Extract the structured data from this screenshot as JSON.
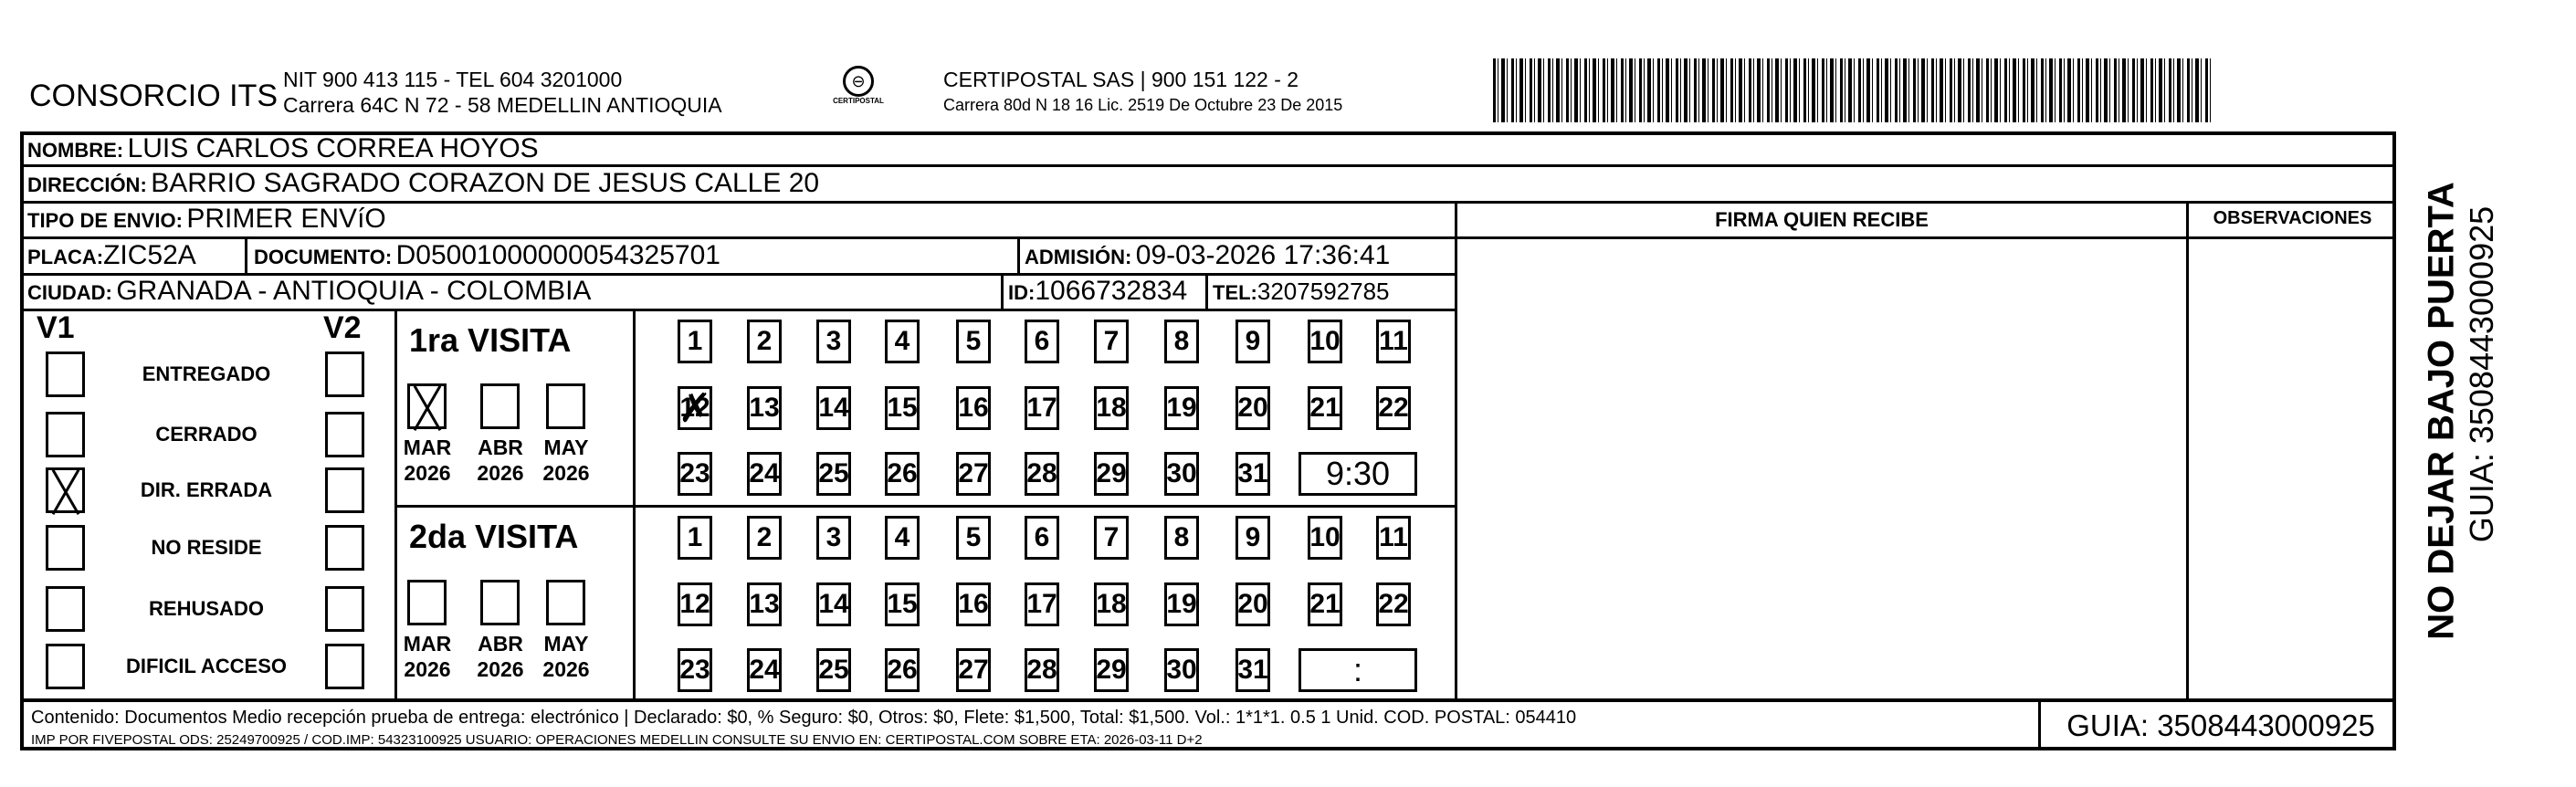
{
  "header": {
    "company": "CONSORCIO ITS",
    "company_line1": "NIT 900 413 115 - TEL 604 3201000",
    "company_line2": "Carrera 64C N 72 - 58 MEDELLIN ANTIOQUIA",
    "logo_text": "CERTIPOSTAL",
    "carrier_line1": "CERTIPOSTAL SAS | 900 151 122 - 2",
    "carrier_line2": "Carrera 80d N 18 16  Lic. 2519 De Octubre 23 De 2015"
  },
  "fields": {
    "nombre_label": "NOMBRE:",
    "nombre": "LUIS CARLOS CORREA HOYOS",
    "direccion_label": "DIRECCIÓN:",
    "direccion": "BARRIO SAGRADO CORAZON DE JESUS CALLE 20",
    "tipo_label": "TIPO DE ENVIO:",
    "tipo": "PRIMER ENVíO",
    "placa_label": "PLACA:",
    "placa": "ZIC52A",
    "documento_label": "DOCUMENTO:",
    "documento": "D05001000000054325701",
    "admision_label": "ADMISIÓN:",
    "admision": "09-03-2026 17:36:41",
    "ciudad_label": "CIUDAD:",
    "ciudad": "GRANADA - ANTIOQUIA - COLOMBIA",
    "id_label": "ID:",
    "id": "1066732834",
    "tel_label": "TEL:",
    "tel": "3207592785"
  },
  "firma_label": "FIRMA QUIEN RECIBE",
  "observaciones_label": "OBSERVACIONES",
  "status": {
    "v1_label": "V1",
    "v2_label": "V2",
    "items": [
      {
        "label": "ENTREGADO",
        "v1": false,
        "v2": false
      },
      {
        "label": "CERRADO",
        "v1": false,
        "v2": false
      },
      {
        "label": "DIR. ERRADA",
        "v1": true,
        "v2": false
      },
      {
        "label": "NO RESIDE",
        "v1": false,
        "v2": false
      },
      {
        "label": "REHUSADO",
        "v1": false,
        "v2": false
      },
      {
        "label": "DIFICIL ACCESO",
        "v1": false,
        "v2": false
      }
    ]
  },
  "visits": [
    {
      "title": "1ra VISITA",
      "months": [
        {
          "m": "MAR",
          "y": "2026",
          "checked": true
        },
        {
          "m": "ABR",
          "y": "2026",
          "checked": false
        },
        {
          "m": "MAY",
          "y": "2026",
          "checked": false
        }
      ],
      "marked_day": 12,
      "time": "9:30"
    },
    {
      "title": "2da VISITA",
      "months": [
        {
          "m": "MAR",
          "y": "2026",
          "checked": false
        },
        {
          "m": "ABR",
          "y": "2026",
          "checked": false
        },
        {
          "m": "MAY",
          "y": "2026",
          "checked": false
        }
      ],
      "marked_day": null,
      "time": ":"
    }
  ],
  "footer": {
    "line1": "Contenido: Documentos Medio recepción prueba de entrega: electrónico | Declarado: $0, % Seguro: $0, Otros: $0, Flete: $1,500, Total: $1,500. Vol.: 1*1*1. 0.5  1 Unid. COD. POSTAL: 054410",
    "line2": "IMP POR FIVEPOSTAL ODS: 25249700925 / COD.IMP: 54323100925 USUARIO: OPERACIONES MEDELLIN CONSULTE SU ENVIO EN: CERTIPOSTAL.COM SOBRE ETA: 2026-03-11 D+2",
    "guia": "GUIA: 3508443000925"
  },
  "side": {
    "warning": "NO DEJAR BAJO PUERTA",
    "guia": "GUIA: 3508443000925"
  }
}
